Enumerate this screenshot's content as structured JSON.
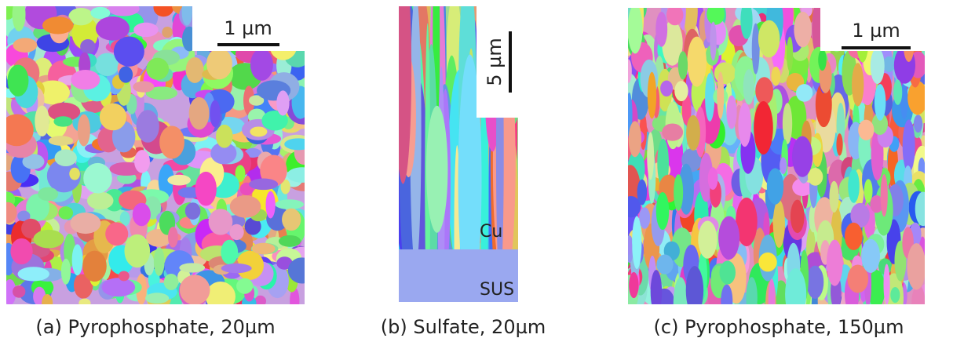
{
  "panels": [
    {
      "scale_bar": "1 µm",
      "caption": "(a) Pyrophosphate, 20µm"
    },
    {
      "scale_bar": "5 µm",
      "labels": [
        "Cu",
        "SUS"
      ],
      "caption": "(b) Sulfate, 20µm"
    },
    {
      "scale_bar": "1 µm",
      "caption": "(c) Pyrophosphate, 150µm"
    }
  ]
}
